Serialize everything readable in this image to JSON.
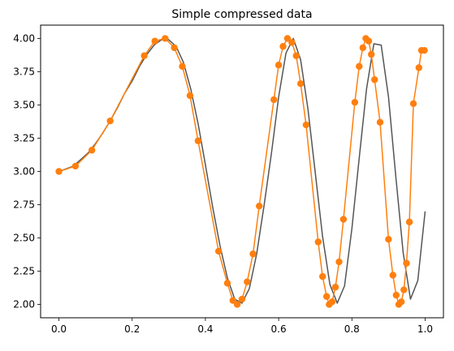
{
  "chart_data": {
    "type": "line",
    "title": "Simple compressed data",
    "xlabel": "",
    "ylabel": "",
    "xlim": [
      -0.05,
      1.05
    ],
    "ylim": [
      1.9,
      4.1
    ],
    "grid": false,
    "x_ticks": [
      0.0,
      0.2,
      0.4,
      0.6,
      0.8,
      1.0
    ],
    "x_tick_labels": [
      "0.0",
      "0.2",
      "0.4",
      "0.6",
      "0.8",
      "1.0"
    ],
    "y_ticks": [
      2.0,
      2.25,
      2.5,
      2.75,
      3.0,
      3.25,
      3.5,
      3.75,
      4.0
    ],
    "y_tick_labels": [
      "2.00",
      "2.25",
      "2.50",
      "2.75",
      "3.00",
      "3.25",
      "3.50",
      "3.75",
      "4.00"
    ],
    "series": [
      {
        "color": "#555555",
        "marker": "none",
        "x": [
          0.0,
          0.02,
          0.04,
          0.06,
          0.08,
          0.1,
          0.12,
          0.14,
          0.16,
          0.18,
          0.2,
          0.22,
          0.24,
          0.26,
          0.28,
          0.3,
          0.32,
          0.34,
          0.36,
          0.38,
          0.4,
          0.42,
          0.44,
          0.46,
          0.48,
          0.5,
          0.52,
          0.54,
          0.56,
          0.58,
          0.6,
          0.62,
          0.64,
          0.66,
          0.68,
          0.7,
          0.72,
          0.74,
          0.76,
          0.78,
          0.8,
          0.82,
          0.84,
          0.86,
          0.88,
          0.9,
          0.92,
          0.94,
          0.96,
          0.98,
          1.0
        ],
        "y": [
          3.0,
          3.02,
          3.04,
          3.09,
          3.14,
          3.21,
          3.29,
          3.38,
          3.48,
          3.59,
          3.68,
          3.79,
          3.88,
          3.95,
          3.99,
          3.99,
          3.94,
          3.82,
          3.62,
          3.36,
          3.05,
          2.73,
          2.44,
          2.2,
          2.04,
          2.01,
          2.12,
          2.38,
          2.74,
          3.13,
          3.56,
          3.89,
          4.0,
          3.84,
          3.47,
          2.99,
          2.51,
          2.15,
          2.01,
          2.14,
          2.57,
          3.1,
          3.62,
          3.96,
          3.95,
          3.56,
          2.96,
          2.39,
          2.04,
          2.18,
          2.7
        ]
      },
      {
        "color": "#ff7f0e",
        "marker": "circle",
        "x": [
          0.0,
          0.045,
          0.09,
          0.14,
          0.233,
          0.262,
          0.29,
          0.315,
          0.337,
          0.358,
          0.38,
          0.436,
          0.46,
          0.475,
          0.487,
          0.5,
          0.514,
          0.53,
          0.547,
          0.587,
          0.6,
          0.612,
          0.624,
          0.636,
          0.648,
          0.66,
          0.675,
          0.708,
          0.72,
          0.731,
          0.738,
          0.746,
          0.755,
          0.765,
          0.777,
          0.808,
          0.82,
          0.83,
          0.838,
          0.846,
          0.853,
          0.862,
          0.877,
          0.9,
          0.912,
          0.921,
          0.928,
          0.935,
          0.942,
          0.949,
          0.957,
          0.968,
          0.983,
          0.99,
          0.998
        ],
        "y": [
          3.0,
          3.04,
          3.16,
          3.38,
          3.87,
          3.98,
          4.0,
          3.93,
          3.79,
          3.57,
          3.23,
          2.4,
          2.16,
          2.03,
          2.0,
          2.04,
          2.17,
          2.38,
          2.74,
          3.54,
          3.8,
          3.94,
          4.0,
          3.97,
          3.87,
          3.66,
          3.35,
          2.47,
          2.21,
          2.06,
          2.0,
          2.02,
          2.13,
          2.32,
          2.64,
          3.52,
          3.79,
          3.93,
          4.0,
          3.98,
          3.88,
          3.69,
          3.37,
          2.49,
          2.22,
          2.07,
          2.0,
          2.02,
          2.11,
          2.31,
          2.62,
          3.51,
          3.78,
          3.91,
          3.91
        ]
      }
    ]
  }
}
